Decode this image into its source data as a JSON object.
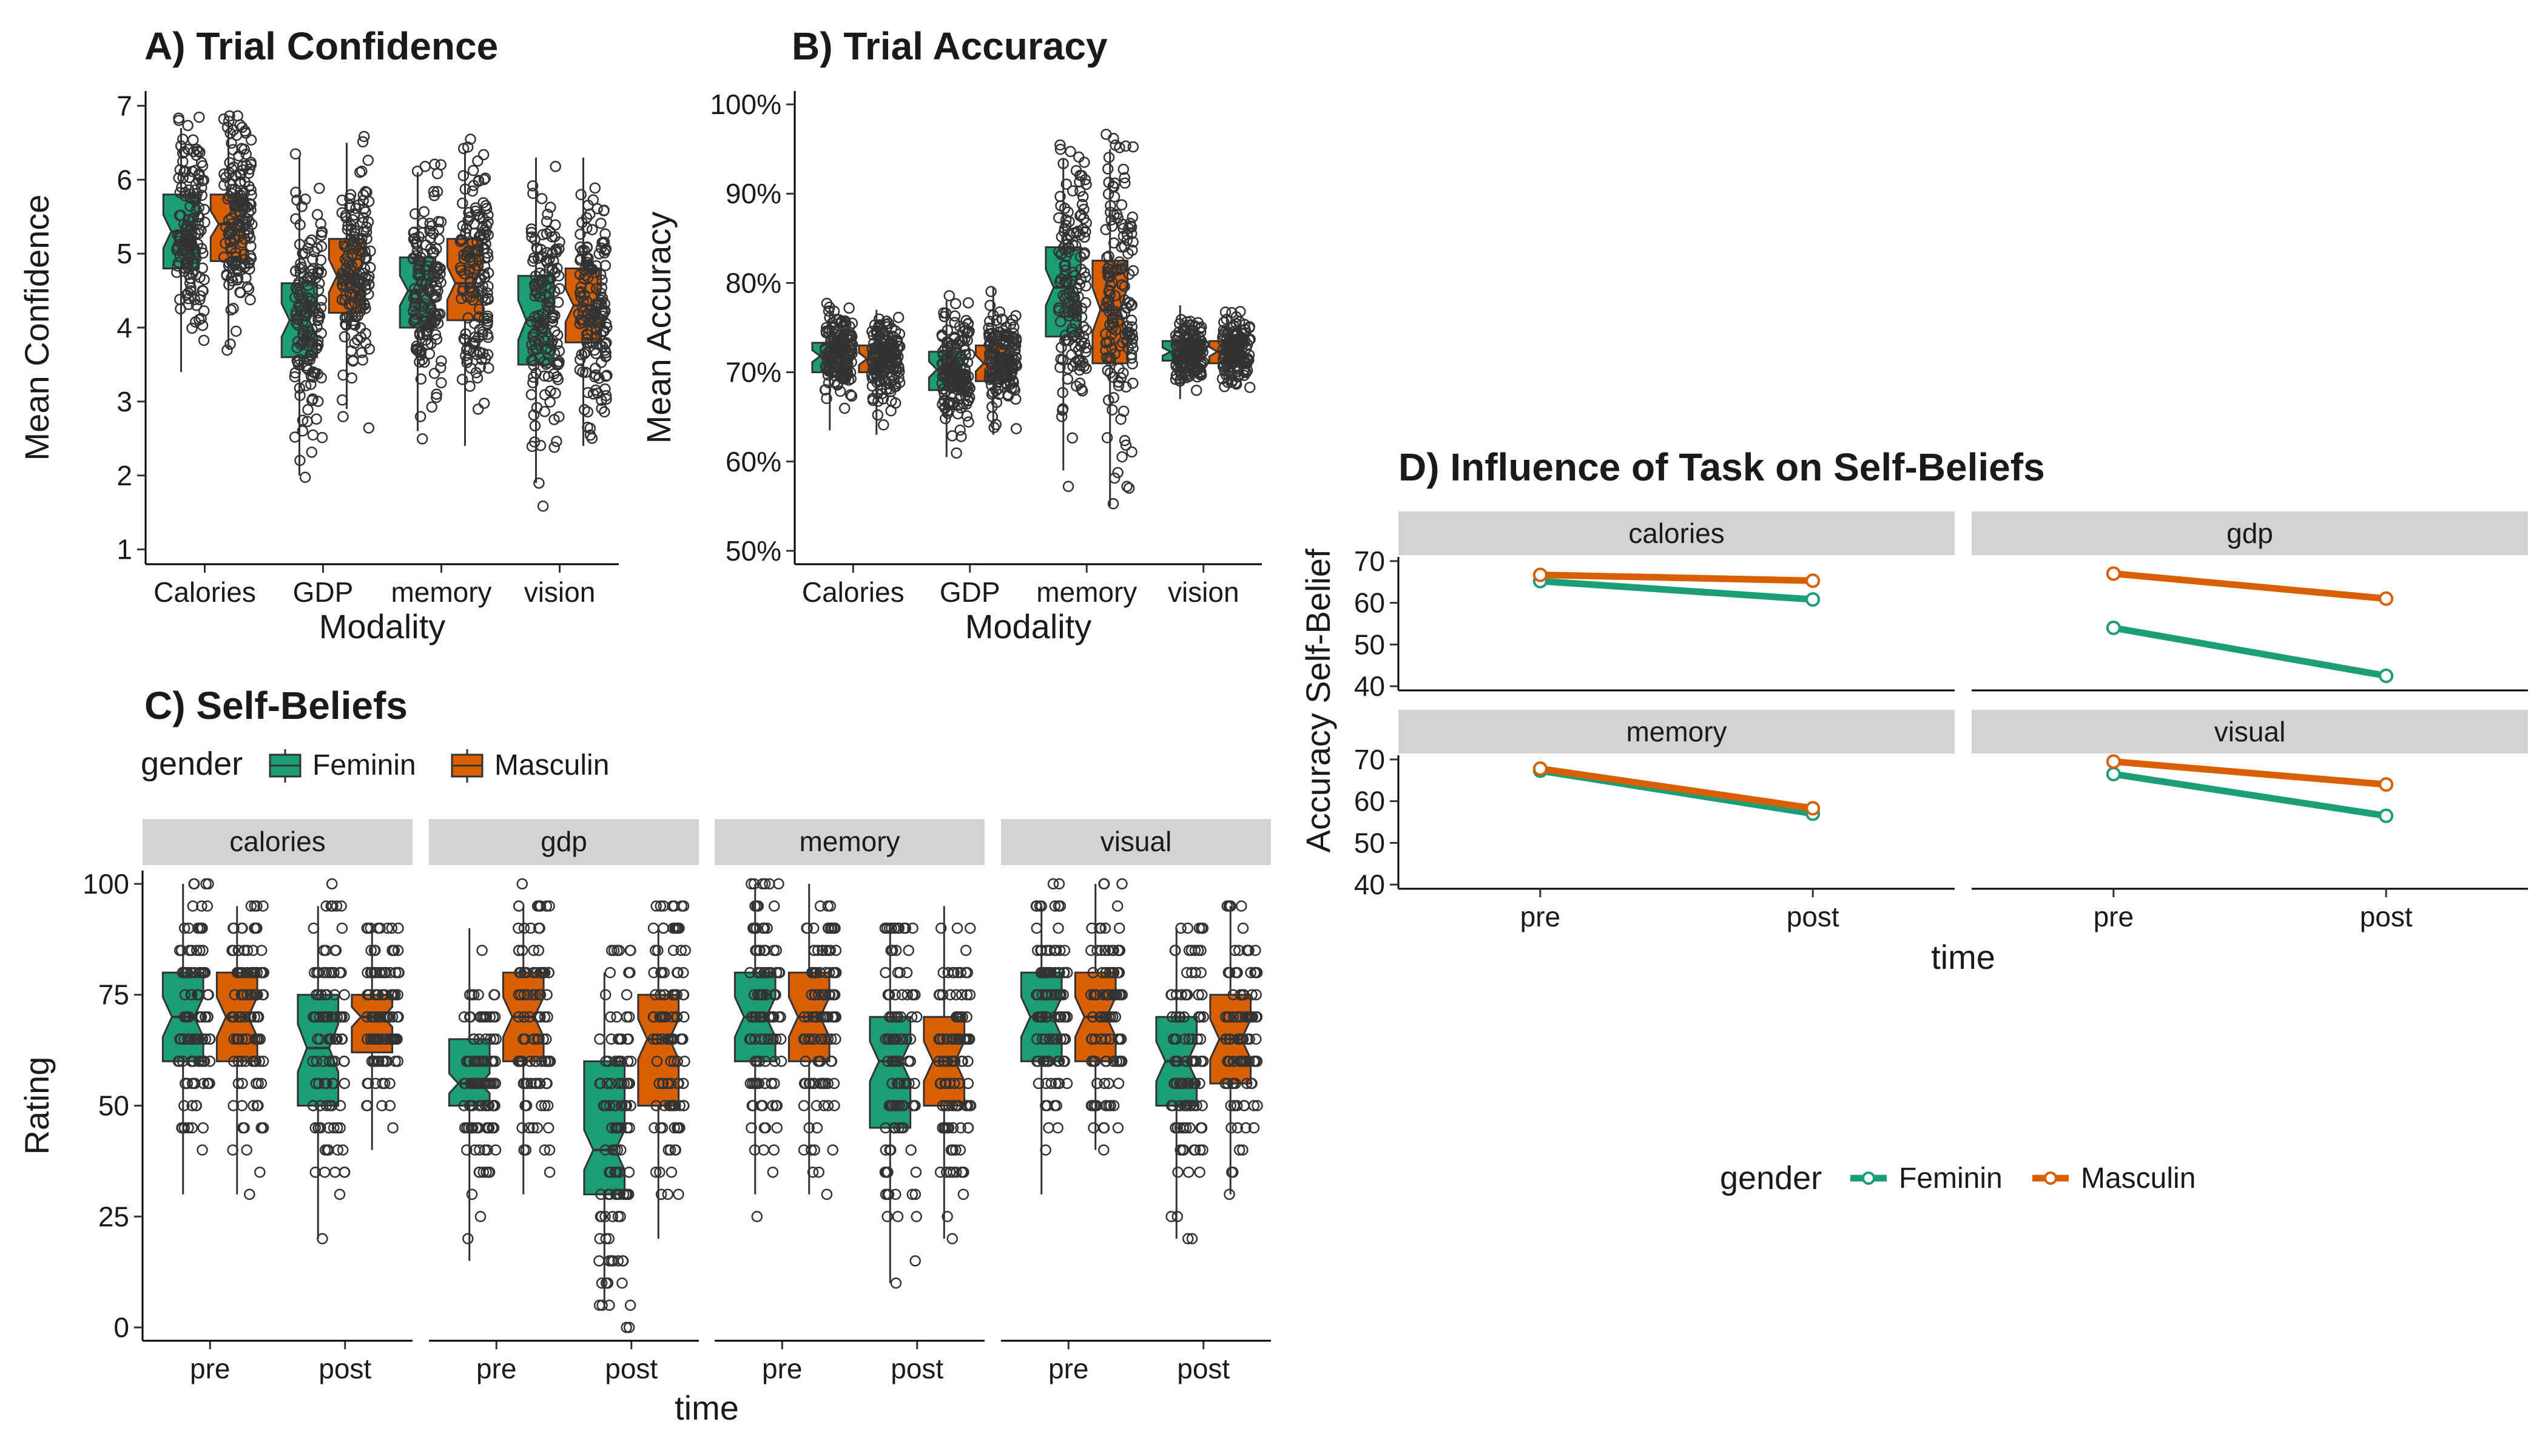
{
  "colors": {
    "Feminin": "#1b9e77",
    "Masculin": "#d95f02",
    "strip_bg": "#d3d3d3",
    "point_edge": "#333333"
  },
  "chart_data": [
    {
      "id": "A",
      "type": "box",
      "title": "A) Trial Confidence",
      "xlabel": "Modality",
      "ylabel": "Mean Confidence",
      "categories": [
        "Calories",
        "GDP",
        "memory",
        "vision"
      ],
      "ylim": [
        0.8,
        7.2
      ],
      "yticks": [
        "1",
        "2",
        "3",
        "4",
        "5",
        "6",
        "7"
      ],
      "ytick_values": [
        1,
        2,
        3,
        4,
        5,
        6,
        7
      ],
      "series": [
        {
          "name": "Feminin",
          "boxes": [
            {
              "q1": 4.8,
              "median": 5.3,
              "q3": 5.8,
              "low": 3.4,
              "high": 6.7
            },
            {
              "q1": 3.6,
              "median": 4.1,
              "q3": 4.6,
              "low": 2.0,
              "high": 6.3
            },
            {
              "q1": 4.0,
              "median": 4.5,
              "q3": 4.95,
              "low": 2.6,
              "high": 6.1
            },
            {
              "q1": 3.5,
              "median": 4.1,
              "q3": 4.7,
              "low": 1.9,
              "high": 6.3
            }
          ]
        },
        {
          "name": "Masculin",
          "boxes": [
            {
              "q1": 4.9,
              "median": 5.4,
              "q3": 5.8,
              "low": 3.7,
              "high": 6.8
            },
            {
              "q1": 4.2,
              "median": 4.7,
              "q3": 5.2,
              "low": 2.9,
              "high": 6.5
            },
            {
              "q1": 4.1,
              "median": 4.6,
              "q3": 5.2,
              "low": 2.4,
              "high": 6.4
            },
            {
              "q1": 3.8,
              "median": 4.3,
              "q3": 4.8,
              "low": 2.4,
              "high": 6.3
            }
          ]
        }
      ]
    },
    {
      "id": "B",
      "type": "box",
      "title": "B) Trial Accuracy",
      "xlabel": "Modality",
      "ylabel": "Mean Accuracy",
      "categories": [
        "Calories",
        "GDP",
        "memory",
        "vision"
      ],
      "ylim": [
        48.5,
        101.5
      ],
      "yticks": [
        "50%",
        "60%",
        "70%",
        "80%",
        "90%",
        "100%"
      ],
      "ytick_values": [
        50,
        60,
        70,
        80,
        90,
        100
      ],
      "series": [
        {
          "name": "Feminin",
          "boxes": [
            {
              "q1": 70.0,
              "median": 71.8,
              "q3": 73.3,
              "low": 63.5,
              "high": 77.5
            },
            {
              "q1": 68.0,
              "median": 70.3,
              "q3": 72.3,
              "low": 60.5,
              "high": 78.0
            },
            {
              "q1": 74.0,
              "median": 79.5,
              "q3": 84.0,
              "low": 59.0,
              "high": 94.0
            },
            {
              "q1": 71.3,
              "median": 72.3,
              "q3": 73.5,
              "low": 67.0,
              "high": 77.5
            }
          ]
        },
        {
          "name": "Masculin",
          "boxes": [
            {
              "q1": 70.0,
              "median": 71.5,
              "q3": 73.0,
              "low": 63.0,
              "high": 77.0
            },
            {
              "q1": 69.0,
              "median": 71.0,
              "q3": 73.0,
              "low": 63.0,
              "high": 79.5
            },
            {
              "q1": 71.0,
              "median": 77.0,
              "q3": 82.5,
              "low": 55.0,
              "high": 95.0
            },
            {
              "q1": 71.0,
              "median": 72.3,
              "q3": 73.5,
              "low": 68.5,
              "high": 76.5
            }
          ]
        }
      ]
    },
    {
      "id": "C",
      "type": "box",
      "title": "C) Self-Beliefs",
      "xlabel": "time",
      "ylabel": "Rating",
      "facets": [
        "calories",
        "gdp",
        "memory",
        "visual"
      ],
      "categories": [
        "pre",
        "post"
      ],
      "ylim": [
        -3,
        103
      ],
      "yticks": [
        "0",
        "25",
        "50",
        "75",
        "100"
      ],
      "ytick_values": [
        0,
        25,
        50,
        75,
        100
      ],
      "legend": {
        "title": "gender",
        "items": [
          "Feminin",
          "Masculin"
        ],
        "position": "top"
      },
      "panels": [
        {
          "facet": "calories",
          "boxes": [
            {
              "time": "pre",
              "gender": "Feminin",
              "q1": 60,
              "median": 70,
              "q3": 80,
              "low": 30,
              "high": 100
            },
            {
              "time": "pre",
              "gender": "Masculin",
              "q1": 60,
              "median": 70,
              "q3": 80,
              "low": 30,
              "high": 95
            },
            {
              "time": "post",
              "gender": "Feminin",
              "q1": 50,
              "median": 63,
              "q3": 75,
              "low": 20,
              "high": 95
            },
            {
              "time": "post",
              "gender": "Masculin",
              "q1": 62,
              "median": 70,
              "q3": 75,
              "low": 40,
              "high": 90
            }
          ]
        },
        {
          "facet": "gdp",
          "boxes": [
            {
              "time": "pre",
              "gender": "Feminin",
              "q1": 50,
              "median": 55,
              "q3": 65,
              "low": 15,
              "high": 90
            },
            {
              "time": "pre",
              "gender": "Masculin",
              "q1": 60,
              "median": 70,
              "q3": 80,
              "low": 30,
              "high": 95
            },
            {
              "time": "post",
              "gender": "Feminin",
              "q1": 30,
              "median": 40,
              "q3": 60,
              "low": 5,
              "high": 80
            },
            {
              "time": "post",
              "gender": "Masculin",
              "q1": 50,
              "median": 65,
              "q3": 75,
              "low": 20,
              "high": 90
            }
          ]
        },
        {
          "facet": "memory",
          "boxes": [
            {
              "time": "pre",
              "gender": "Feminin",
              "q1": 60,
              "median": 70,
              "q3": 80,
              "low": 30,
              "high": 100
            },
            {
              "time": "pre",
              "gender": "Masculin",
              "q1": 60,
              "median": 70,
              "q3": 80,
              "low": 30,
              "high": 100
            },
            {
              "time": "post",
              "gender": "Feminin",
              "q1": 45,
              "median": 60,
              "q3": 70,
              "low": 10,
              "high": 90
            },
            {
              "time": "post",
              "gender": "Masculin",
              "q1": 50,
              "median": 60,
              "q3": 70,
              "low": 20,
              "high": 95
            }
          ]
        },
        {
          "facet": "visual",
          "boxes": [
            {
              "time": "pre",
              "gender": "Feminin",
              "q1": 60,
              "median": 70,
              "q3": 80,
              "low": 30,
              "high": 95
            },
            {
              "time": "pre",
              "gender": "Masculin",
              "q1": 60,
              "median": 70,
              "q3": 80,
              "low": 40,
              "high": 100
            },
            {
              "time": "post",
              "gender": "Feminin",
              "q1": 50,
              "median": 60,
              "q3": 70,
              "low": 20,
              "high": 90
            },
            {
              "time": "post",
              "gender": "Masculin",
              "q1": 55,
              "median": 65,
              "q3": 75,
              "low": 30,
              "high": 95
            }
          ]
        }
      ]
    },
    {
      "id": "D",
      "type": "line",
      "title": "D) Influence of Task on Self-Beliefs",
      "xlabel": "time",
      "ylabel": "Accuracy Self-Belief",
      "x": [
        "pre",
        "post"
      ],
      "facets": [
        "calories",
        "gdp",
        "memory",
        "visual"
      ],
      "ylim": [
        39,
        71
      ],
      "yticks": [
        "40",
        "50",
        "60",
        "70"
      ],
      "ytick_values": [
        40,
        50,
        60,
        70
      ],
      "legend": {
        "title": "gender",
        "items": [
          "Feminin",
          "Masculin"
        ],
        "position": "bottom"
      },
      "panels": [
        {
          "facet": "calories",
          "series": [
            {
              "name": "Feminin",
              "values": [
                65.2,
                60.8
              ]
            },
            {
              "name": "Masculin",
              "values": [
                66.7,
                65.3
              ]
            }
          ]
        },
        {
          "facet": "gdp",
          "series": [
            {
              "name": "Feminin",
              "values": [
                54.0,
                42.5
              ]
            },
            {
              "name": "Masculin",
              "values": [
                67.0,
                61.0
              ]
            }
          ]
        },
        {
          "facet": "memory",
          "series": [
            {
              "name": "Feminin",
              "values": [
                67.3,
                57.0
              ]
            },
            {
              "name": "Masculin",
              "values": [
                67.8,
                58.3
              ]
            }
          ]
        },
        {
          "facet": "visual",
          "series": [
            {
              "name": "Feminin",
              "values": [
                66.5,
                56.5
              ]
            },
            {
              "name": "Masculin",
              "values": [
                69.5,
                64.0
              ]
            }
          ]
        }
      ]
    }
  ]
}
